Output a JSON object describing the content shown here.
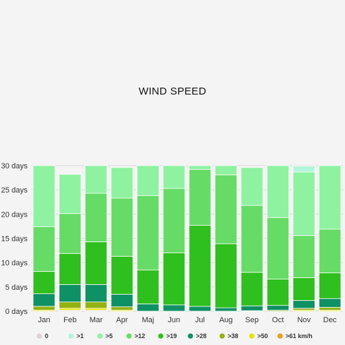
{
  "chart_data": {
    "type": "bar",
    "title": "WIND SPEED",
    "xlabel": "",
    "ylabel": "",
    "ylim": [
      0,
      30
    ],
    "y_ticks": [
      "0 days",
      "5 days",
      "10 days",
      "15 days",
      "20 days",
      "25 days",
      "30 days"
    ],
    "stacked": true,
    "grid": true,
    "legend_position": "bottom",
    "categories": [
      "Jan",
      "Feb",
      "Mar",
      "Apr",
      "Maj",
      "Jun",
      "Jul",
      "Aug",
      "Sep",
      "Oct",
      "Nov",
      "Dec"
    ],
    "series": [
      {
        "name": "0",
        "color": "#ddd2d2",
        "values": [
          0,
          0.2,
          0.2,
          0,
          0,
          0,
          0,
          0,
          0,
          0,
          0,
          0
        ]
      },
      {
        "name": ">61 km/h",
        "color": "#f39c12",
        "values": [
          0,
          0,
          0,
          0,
          0,
          0,
          0,
          0,
          0,
          0,
          0,
          0
        ]
      },
      {
        "name": ">50",
        "color": "#e6e200",
        "values": [
          0.2,
          0.4,
          0.4,
          0.2,
          0,
          0,
          0,
          0,
          0,
          0,
          0.2,
          0.2
        ]
      },
      {
        "name": ">38",
        "color": "#93b110",
        "values": [
          0.8,
          1.3,
          1.3,
          0.7,
          0,
          0,
          0,
          0,
          0.1,
          0.2,
          0.4,
          0.6
        ]
      },
      {
        "name": ">28",
        "color": "#0e9164",
        "values": [
          2.6,
          3.6,
          3.6,
          2.6,
          1.5,
          1.3,
          1.0,
          0.7,
          1.0,
          1.0,
          1.6,
          1.8
        ]
      },
      {
        "name": ">19",
        "color": "#2fbf1e",
        "values": [
          4.6,
          6.4,
          8.8,
          7.8,
          7.0,
          10.7,
          16.7,
          13.2,
          6.9,
          5.4,
          4.7,
          5.3
        ]
      },
      {
        "name": ">12",
        "color": "#66dc66",
        "values": [
          9.2,
          8.2,
          10.0,
          12.0,
          15.3,
          13.3,
          11.5,
          14.2,
          13.8,
          12.7,
          8.7,
          9.0
        ]
      },
      {
        "name": ">5",
        "color": "#8ef2a0",
        "values": [
          12.6,
          8.1,
          5.7,
          6.3,
          6.2,
          4.7,
          0.8,
          1.9,
          7.8,
          10.7,
          13.1,
          13.1
        ]
      },
      {
        "name": ">1",
        "color": "#b3f5d9",
        "values": [
          0,
          0,
          0,
          0,
          0,
          0,
          0,
          0,
          0,
          0,
          1.2,
          0
        ]
      }
    ],
    "legend": [
      "0",
      ">1",
      ">5",
      ">12",
      ">19",
      ">28",
      ">38",
      ">50",
      ">61 km/h"
    ]
  }
}
